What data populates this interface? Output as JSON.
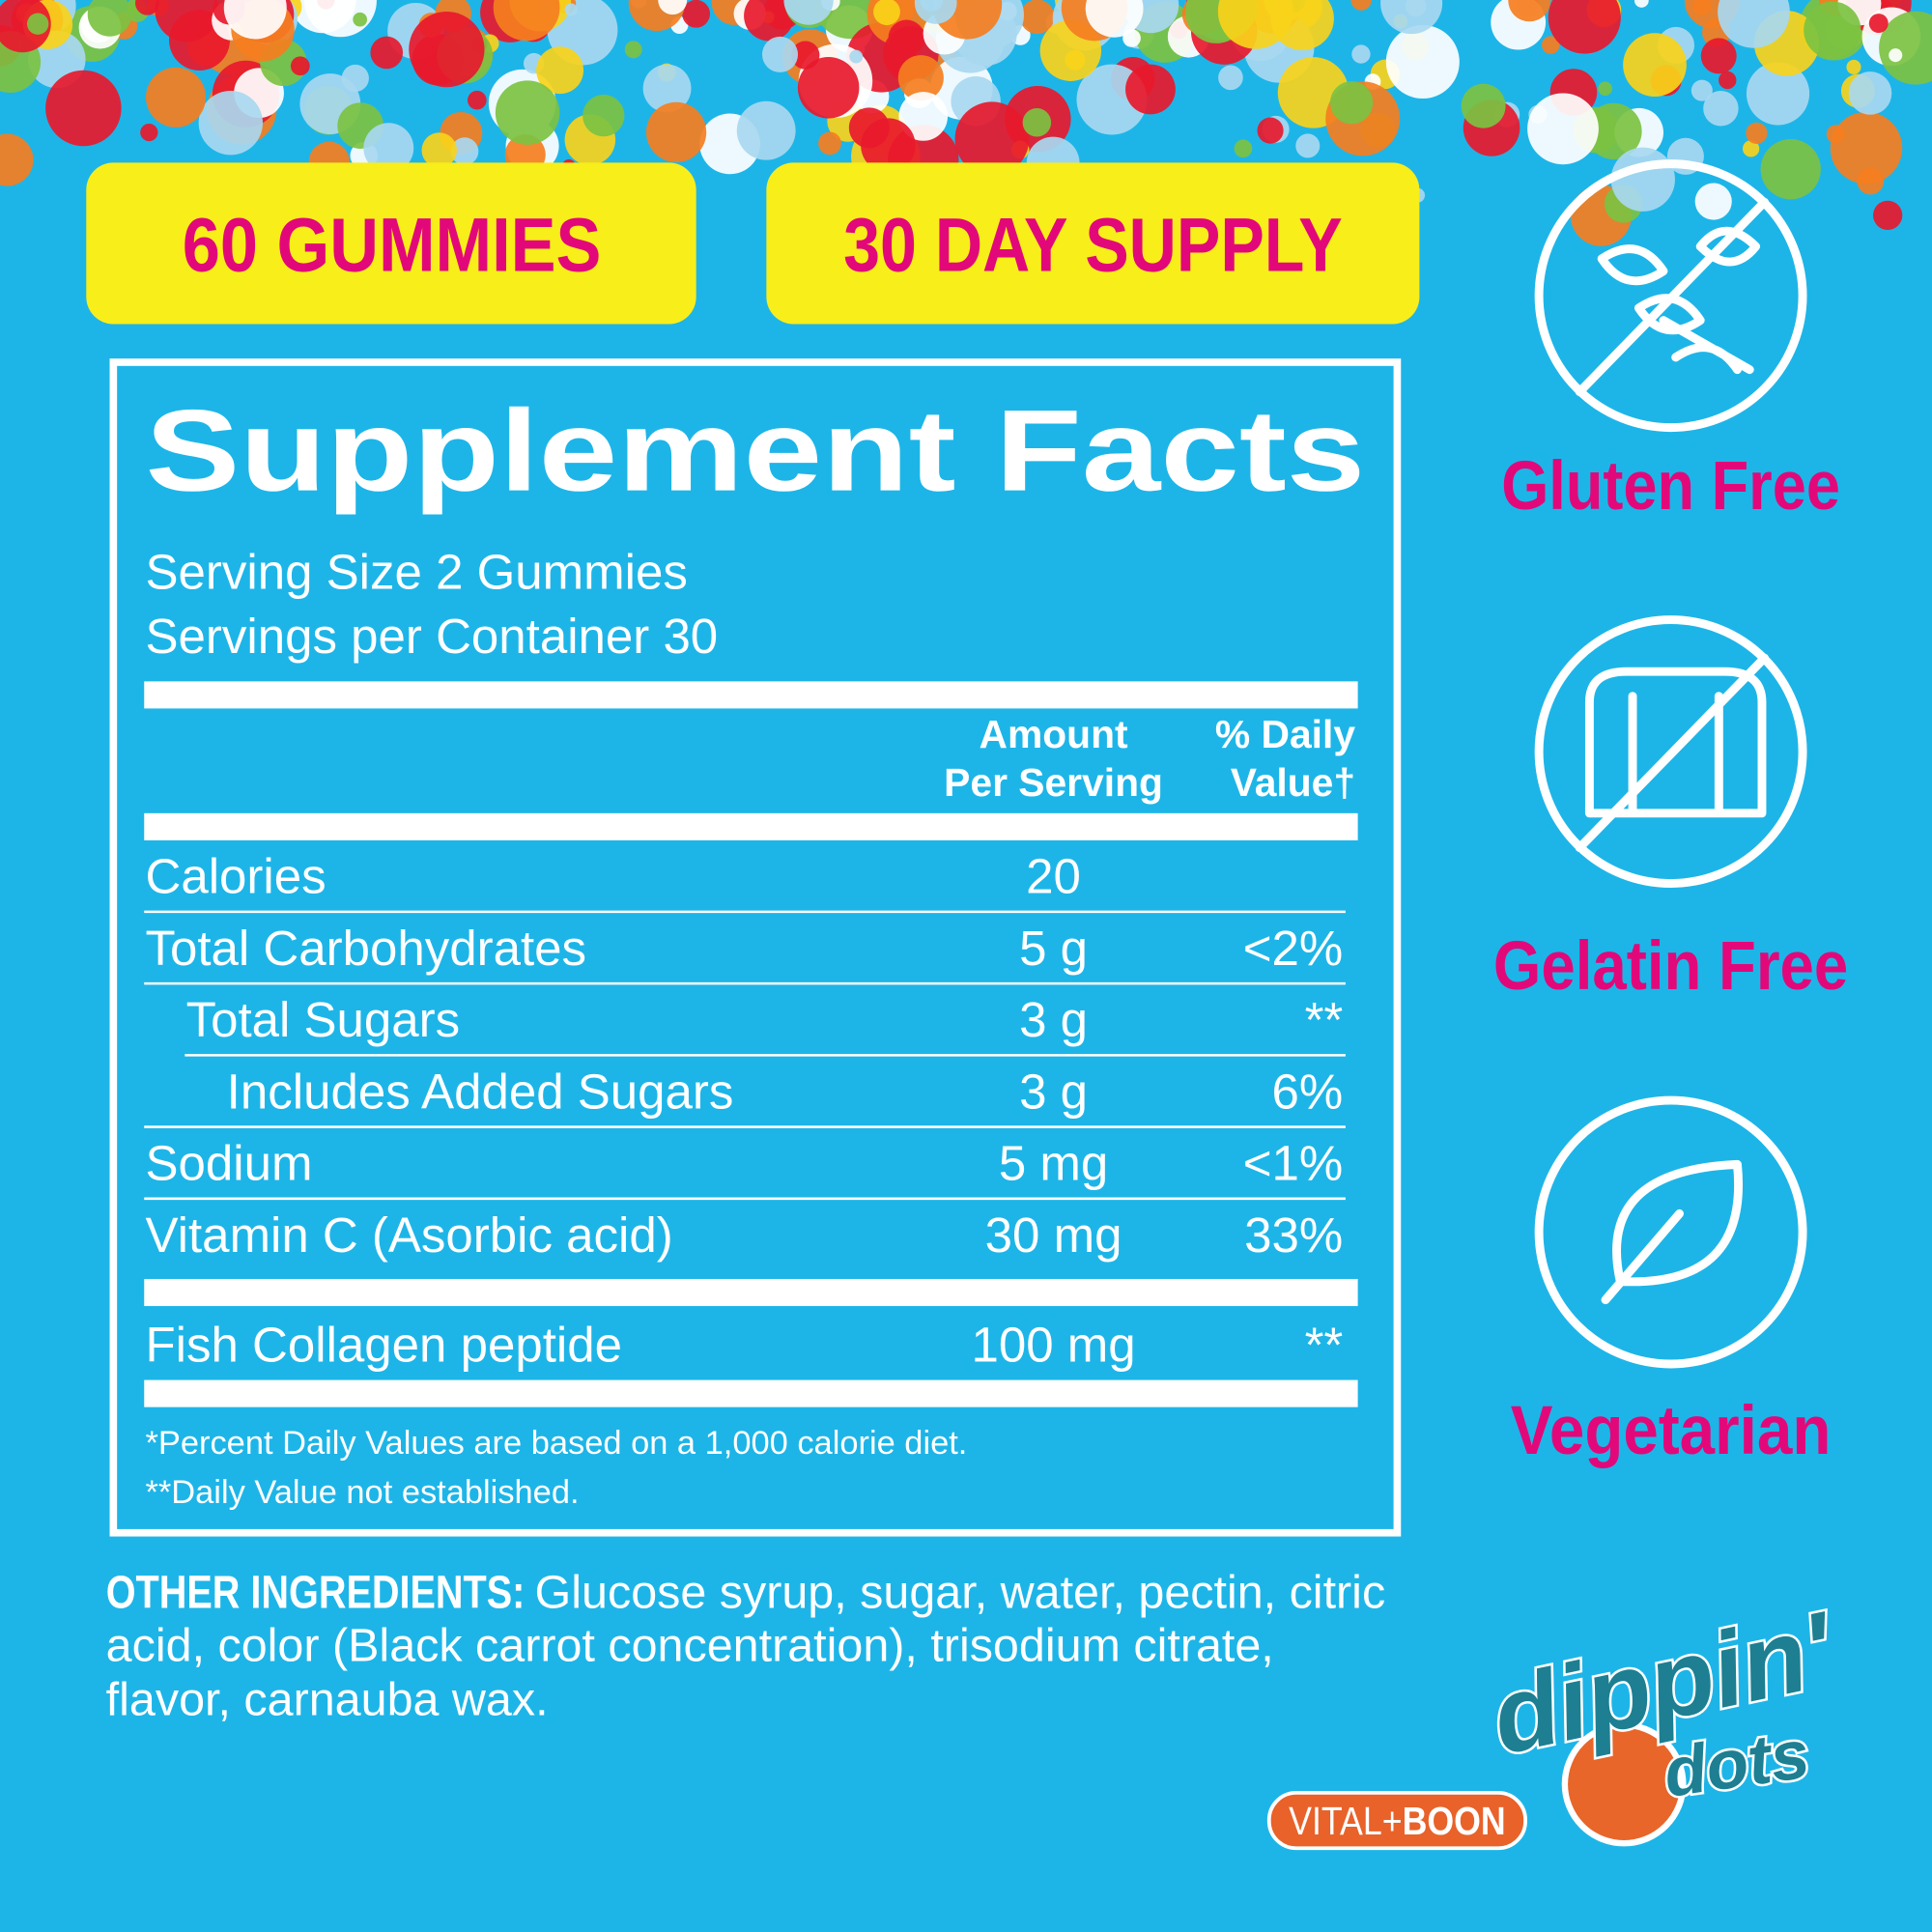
{
  "badges": [
    "60 GUMMIES",
    "30 DAY SUPPLY"
  ],
  "facts": {
    "title": "Supplement Facts",
    "serving_size": "Serving Size 2 Gummies",
    "servings": "Servings per Container 30",
    "header": {
      "amount": [
        "Amount",
        "Per Serving"
      ],
      "daily_value": [
        "% Daily",
        "Value†"
      ]
    },
    "rows": [
      [
        "Calories",
        "20"
      ],
      [
        "Total Carbohydrates",
        "5 g",
        "<2%"
      ],
      [
        "Total Sugars",
        "3 g",
        "**"
      ],
      [
        "Includes Added Sugars",
        "3 g",
        "6%"
      ],
      [
        "Sodium",
        "5 mg",
        "<1%"
      ],
      [
        "Vitamin C (Asorbic acid)",
        "30 mg",
        "33%"
      ]
    ],
    "other_rows": [
      [
        "Fish Collagen peptide",
        "100 mg",
        "**"
      ]
    ],
    "footnotes": [
      "*Percent Daily Values are based on a 1,000 calorie diet.",
      "**Daily Value not established."
    ]
  },
  "ingredients": {
    "label": "OTHER INGREDIENTS:",
    "lines": [
      "Glucose syrup, sugar, water, pectin, citric",
      "acid, color (Black carrot concentration), trisodium citrate,",
      "flavor, carnauba wax."
    ]
  },
  "claims": [
    "Gluten Free",
    "Gelatin Free",
    "Vegetarian"
  ],
  "logo": {
    "brand": [
      "dippin'",
      "dots"
    ],
    "partner": [
      "VITAL+",
      "BOON"
    ]
  }
}
